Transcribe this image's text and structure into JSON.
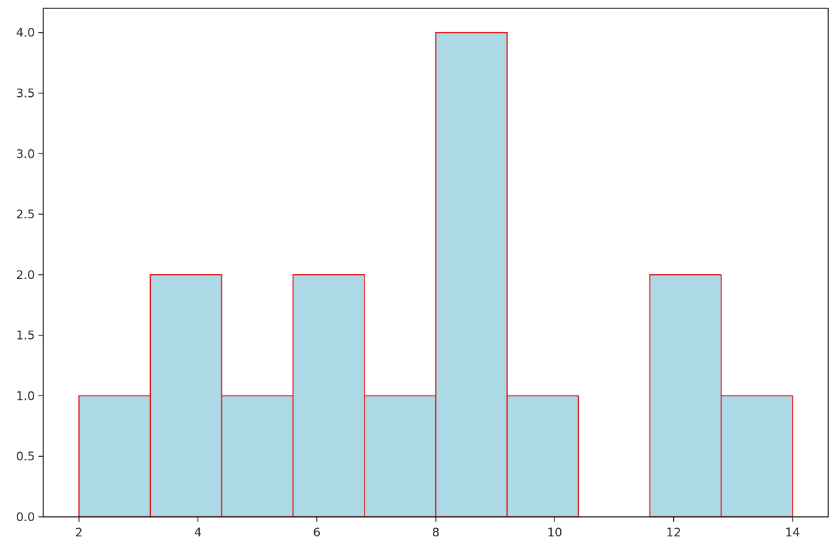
{
  "chart_data": {
    "type": "bar",
    "histogram": true,
    "bins": [
      {
        "x0": 2.0,
        "x1": 3.2,
        "count": 1
      },
      {
        "x0": 3.2,
        "x1": 4.4,
        "count": 2
      },
      {
        "x0": 4.4,
        "x1": 5.6,
        "count": 1
      },
      {
        "x0": 5.6,
        "x1": 6.8,
        "count": 2
      },
      {
        "x0": 6.8,
        "x1": 8.0,
        "count": 1
      },
      {
        "x0": 8.0,
        "x1": 9.2,
        "count": 4
      },
      {
        "x0": 9.2,
        "x1": 10.4,
        "count": 1
      },
      {
        "x0": 10.4,
        "x1": 11.6,
        "count": 0
      },
      {
        "x0": 11.6,
        "x1": 12.8,
        "count": 2
      },
      {
        "x0": 12.8,
        "x1": 14.0,
        "count": 1
      }
    ],
    "title": "",
    "xlabel": "",
    "ylabel": "",
    "xlim": [
      1.4,
      14.6
    ],
    "ylim": [
      0,
      4.2
    ],
    "x_ticks": [
      "2",
      "4",
      "6",
      "8",
      "10",
      "12",
      "14"
    ],
    "y_ticks": [
      "0.0",
      "0.5",
      "1.0",
      "1.5",
      "2.0",
      "2.5",
      "3.0",
      "3.5",
      "4.0"
    ],
    "bar_fill_color": "#add8e6",
    "bar_edge_color": "#e31a1c",
    "grid": false,
    "legend": false
  }
}
